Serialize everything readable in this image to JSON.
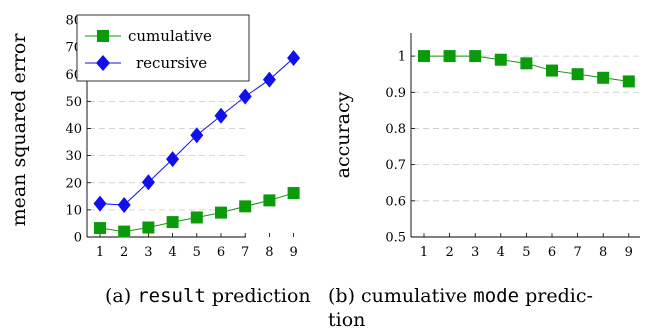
{
  "chart_data": [
    {
      "type": "line",
      "x": [
        1,
        2,
        3,
        4,
        5,
        6,
        7,
        8,
        9
      ],
      "series": [
        {
          "name": "cumulative",
          "values": [
            3.3,
            2.0,
            3.5,
            5.5,
            7.2,
            9.0,
            11.3,
            13.5,
            16.2
          ],
          "color": "#0a9a0a",
          "marker": "square"
        },
        {
          "name": "recursive",
          "values": [
            12.3,
            11.8,
            20.2,
            28.7,
            37.5,
            44.7,
            51.8,
            58.0,
            66.0
          ],
          "color": "#1010ee",
          "marker": "diamond"
        }
      ],
      "ylabel": "mean squared error",
      "ylim": [
        0,
        80
      ],
      "yticks": [
        "0",
        "10",
        "20",
        "30",
        "40",
        "50",
        "60",
        "70",
        "80"
      ],
      "xticks": [
        "1",
        "2",
        "3",
        "4",
        "5",
        "6",
        "7",
        "8",
        "9"
      ],
      "legend_position": "top-left",
      "grid": "horizontal dashed",
      "caption": {
        "prefix": "(a) ",
        "code": "result",
        "suffix": " prediction"
      }
    },
    {
      "type": "line",
      "x": [
        1,
        2,
        3,
        4,
        5,
        6,
        7,
        8,
        9
      ],
      "series": [
        {
          "values": [
            1.0,
            1.0,
            1.0,
            0.99,
            0.98,
            0.96,
            0.95,
            0.94,
            0.93
          ],
          "color": "#0a9a0a",
          "marker": "square"
        }
      ],
      "ylabel": "accuracy",
      "ylim": [
        0.5,
        1.05
      ],
      "yticks": [
        "0.5",
        "0.6",
        "0.7",
        "0.8",
        "0.9",
        "1"
      ],
      "xticks": [
        "1",
        "2",
        "3",
        "4",
        "5",
        "6",
        "7",
        "8",
        "9"
      ],
      "grid": "horizontal dashed",
      "caption": {
        "prefix": "(b) cumulative ",
        "code": "mode",
        "suffix": " predic-",
        "line2": "tion"
      }
    }
  ]
}
